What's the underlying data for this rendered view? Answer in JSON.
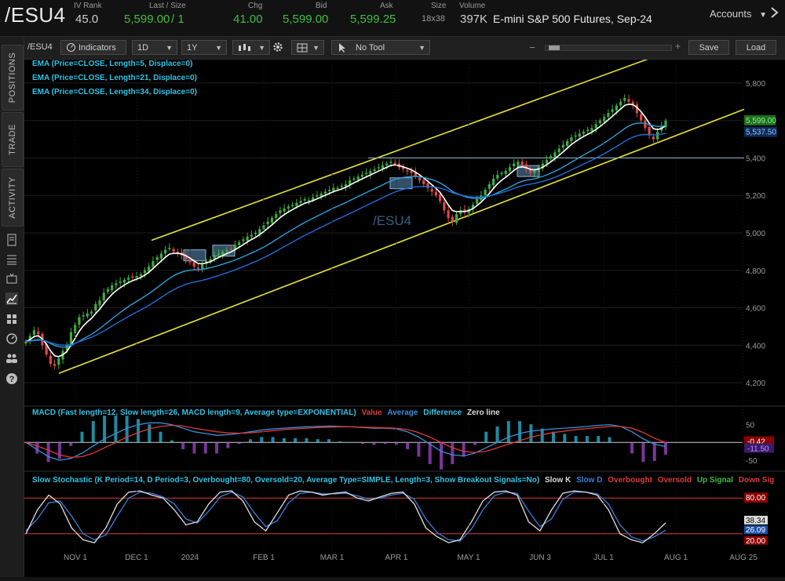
{
  "quote": {
    "symbol": "/ESU4",
    "iv_rank_label": "IV Rank",
    "iv_rank": "45.0",
    "last_label": "Last / Size",
    "last": "5,599.00",
    "size": "/ 1",
    "chg_label": "Chg",
    "chg": "41.00",
    "bid_label": "Bid",
    "bid": "5,599.00",
    "ask_label": "Ask",
    "ask": "5,599.25",
    "bidask_size_label": "Size",
    "bidask_size": "18x38",
    "volume_label": "Volume",
    "volume": "397K",
    "description": "E-mini S&P 500 Futures, Sep-24",
    "accounts_label": "Accounts"
  },
  "rail": {
    "tabs": [
      "POSITIONS",
      "TRADE",
      "ACTIVITY"
    ],
    "icons": [
      "document-icon",
      "list-icon",
      "tv-icon",
      "chart-icon",
      "grid-icon",
      "gauge-icon",
      "people-icon",
      "help-icon"
    ]
  },
  "toolbar": {
    "symbol": "/ESU4",
    "indicators": "Indicators",
    "interval": "1D",
    "range": "1Y",
    "tool": "No Tool",
    "save": "Save",
    "load": "Load"
  },
  "colors": {
    "up": "#3fae3f",
    "down": "#e04848",
    "channel": "#e8e23a",
    "ema5": "#ffffff",
    "ema21": "#2ca0d8",
    "ema34": "#1f6fd8",
    "macd_line": "#3a8fd8",
    "macd_avg": "#e03a3a",
    "slow_k": "#e0e0e0",
    "slow_d": "#3a7fd8",
    "overbought": "#e03a3a",
    "watermark": "#3a5f80"
  },
  "chart_data": [
    {
      "type": "candlestick",
      "title": "/ESU4",
      "legend": [
        "EMA (Price=CLOSE, Length=5, Displace=0)",
        "EMA (Price=CLOSE, Length=21, Displace=0)",
        "EMA (Price=CLOSE, Length=34, Displace=0)"
      ],
      "x_ticks": [
        "NOV 1",
        "DEC 1",
        "2024",
        "FEB 1",
        "MAR 1",
        "APR 1",
        "MAY 1",
        "JUN 3",
        "JUL 1",
        "AUG 1",
        "AUG 25"
      ],
      "y_ticks": [
        4200,
        4400,
        4600,
        4800,
        5000,
        5200,
        5400,
        5600,
        5800
      ],
      "ylim": [
        4100,
        5900
      ],
      "last_price_label": "5,599.00",
      "ema_label": "5,537.50",
      "horizontal_line": 5400,
      "channel": {
        "upper": {
          "from": [
            "Dec 10",
            4960
          ],
          "to": [
            "Jul 30",
            5940
          ]
        },
        "lower": {
          "from": [
            "Oct 27",
            4250
          ],
          "to": [
            "Aug 25",
            5660
          ]
        }
      },
      "closes": [
        4420,
        4450,
        4480,
        4460,
        4400,
        4350,
        4300,
        4290,
        4330,
        4370,
        4400,
        4470,
        4510,
        4550,
        4560,
        4570,
        4580,
        4620,
        4640,
        4680,
        4700,
        4720,
        4730,
        4740,
        4750,
        4760,
        4765,
        4770,
        4780,
        4800,
        4820,
        4850,
        4870,
        4890,
        4910,
        4920,
        4900,
        4890,
        4880,
        4860,
        4840,
        4820,
        4810,
        4830,
        4850,
        4860,
        4880,
        4890,
        4900,
        4910,
        4915,
        4935,
        4950,
        4965,
        4980,
        4990,
        5000,
        5020,
        5040,
        5060,
        5080,
        5100,
        5120,
        5130,
        5140,
        5150,
        5160,
        5170,
        5180,
        5175,
        5190,
        5200,
        5210,
        5220,
        5230,
        5240,
        5240,
        5250,
        5260,
        5280,
        5290,
        5300,
        5310,
        5320,
        5330,
        5340,
        5350,
        5360,
        5370,
        5380,
        5370,
        5350,
        5340,
        5330,
        5320,
        5300,
        5280,
        5260,
        5240,
        5220,
        5200,
        5170,
        5120,
        5080,
        5060,
        5100,
        5120,
        5110,
        5130,
        5150,
        5180,
        5200,
        5230,
        5260,
        5290,
        5310,
        5320,
        5330,
        5350,
        5370,
        5380,
        5360,
        5340,
        5320,
        5330,
        5350,
        5370,
        5390,
        5410,
        5430,
        5450,
        5470,
        5490,
        5510,
        5520,
        5530,
        5540,
        5550,
        5560,
        5580,
        5600,
        5620,
        5640,
        5660,
        5680,
        5700,
        5720,
        5700,
        5680,
        5640,
        5600,
        5560,
        5520,
        5500,
        5540,
        5570,
        5599
      ]
    },
    {
      "type": "line",
      "title": "MACD (Fast length=12, Slow length=26, MACD length=9, Average type=EXPONENTIAL)",
      "legend": [
        "Value",
        "Average",
        "Difference",
        "Zero line"
      ],
      "y_ticks": [
        50,
        0,
        -50
      ],
      "ylim": [
        -70,
        80
      ],
      "value_label": "-11.50",
      "avg_label": "-0.42",
      "value": [
        0,
        -20,
        -40,
        -50,
        -45,
        -30,
        -10,
        10,
        25,
        40,
        50,
        55,
        55,
        50,
        40,
        30,
        25,
        20,
        22,
        25,
        30,
        35,
        38,
        40,
        42,
        44,
        45,
        46,
        45,
        44,
        42,
        40,
        40,
        38,
        30,
        15,
        -5,
        -25,
        -35,
        -38,
        -30,
        -15,
        0,
        15,
        25,
        32,
        35,
        38,
        40,
        42,
        45,
        48,
        50,
        45,
        30,
        10,
        -5,
        -11.5
      ],
      "average": [
        0,
        -10,
        -22,
        -35,
        -42,
        -40,
        -30,
        -15,
        0,
        15,
        28,
        38,
        45,
        48,
        46,
        40,
        35,
        30,
        27,
        26,
        27,
        30,
        33,
        36,
        38,
        40,
        42,
        43,
        44,
        44,
        43,
        42,
        41,
        40,
        36,
        28,
        15,
        0,
        -15,
        -25,
        -28,
        -25,
        -15,
        -5,
        5,
        15,
        22,
        28,
        32,
        36,
        39,
        42,
        45,
        45,
        40,
        28,
        12,
        -0.42
      ]
    },
    {
      "type": "line",
      "title": "Slow Stochastic (K Period=14, D Period=3, Overbought=80, Oversold=20, Average Type=SIMPLE, Length=3, Show Breakout Signals=No)",
      "legend": [
        "Slow K",
        "Slow D",
        "Overbought",
        "Oversold",
        "Up Signal",
        "Down Signal"
      ],
      "y_ticks": [
        80,
        20
      ],
      "ylim": [
        0,
        100
      ],
      "k_label": "38.34",
      "d_label": "26.09",
      "overbought": 80,
      "oversold": 20,
      "slow_k": [
        20,
        60,
        85,
        70,
        30,
        10,
        5,
        30,
        70,
        90,
        92,
        85,
        80,
        60,
        35,
        40,
        70,
        90,
        92,
        75,
        40,
        25,
        55,
        85,
        92,
        90,
        85,
        88,
        90,
        80,
        75,
        82,
        88,
        90,
        70,
        30,
        15,
        5,
        10,
        40,
        75,
        90,
        92,
        85,
        40,
        25,
        60,
        88,
        92,
        90,
        85,
        60,
        20,
        10,
        5,
        20,
        38.34
      ],
      "slow_d": [
        25,
        45,
        72,
        75,
        50,
        20,
        10,
        18,
        50,
        80,
        90,
        88,
        82,
        70,
        45,
        38,
        58,
        82,
        90,
        82,
        55,
        32,
        42,
        72,
        88,
        90,
        87,
        87,
        88,
        84,
        78,
        80,
        85,
        88,
        78,
        45,
        22,
        10,
        8,
        28,
        60,
        84,
        90,
        88,
        58,
        32,
        45,
        78,
        90,
        90,
        87,
        70,
        35,
        15,
        8,
        15,
        26.09
      ]
    }
  ]
}
